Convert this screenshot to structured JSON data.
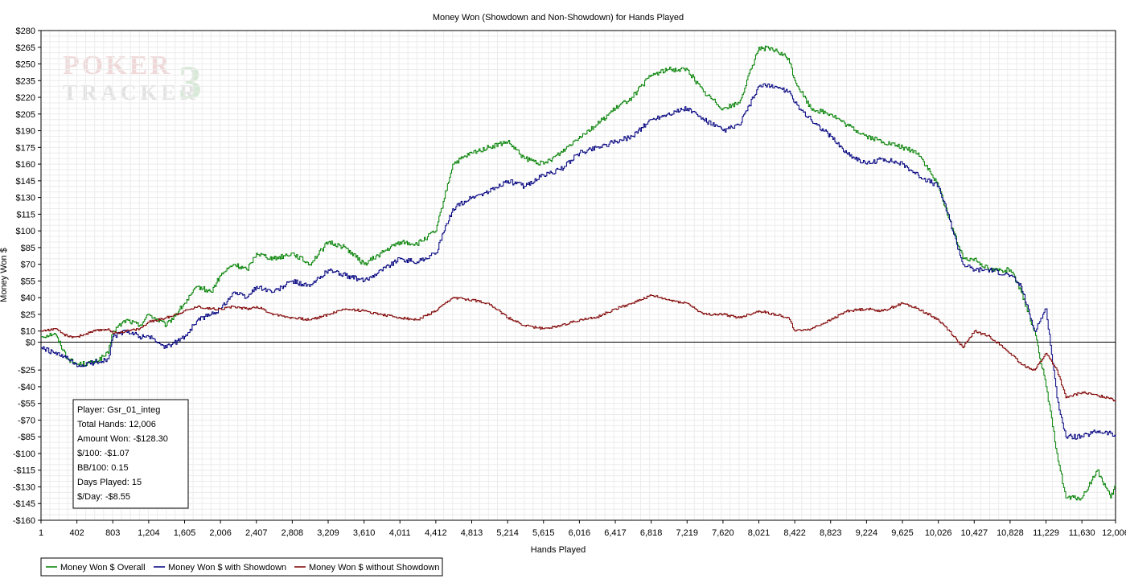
{
  "chart_data": {
    "type": "line",
    "title": "Money Won (Showdown and Non-Showdown) for Hands Played",
    "xlabel": "Hands Played",
    "ylabel": "Money Won $",
    "xlim": [
      1,
      12006
    ],
    "ylim": [
      -160,
      280
    ],
    "x_ticks": [
      1,
      402,
      803,
      1204,
      1605,
      2006,
      2407,
      2808,
      3209,
      3610,
      4011,
      4412,
      4813,
      5214,
      5615,
      6016,
      6417,
      6818,
      7219,
      7620,
      8021,
      8422,
      8823,
      9224,
      9625,
      10026,
      10427,
      10828,
      11229,
      11630,
      12006
    ],
    "x_tick_labels": [
      "1",
      "402",
      "803",
      "1,204",
      "1,605",
      "2,006",
      "2,407",
      "2,808",
      "3,209",
      "3,610",
      "4,011",
      "4,412",
      "4,813",
      "5,214",
      "5,615",
      "6,016",
      "6,417",
      "6,818",
      "7,219",
      "7,620",
      "8,021",
      "8,422",
      "8,823",
      "9,224",
      "9,625",
      "10,026",
      "10,427",
      "10,828",
      "11,229",
      "11,630",
      "12,006"
    ],
    "y_ticks": [
      280,
      265,
      250,
      235,
      220,
      205,
      190,
      175,
      160,
      145,
      130,
      115,
      100,
      85,
      70,
      55,
      40,
      25,
      10,
      0,
      -25,
      -40,
      -55,
      -70,
      -85,
      -100,
      -115,
      -130,
      -145,
      -160
    ],
    "y_tick_labels": [
      "$280",
      "$265",
      "$250",
      "$235",
      "$220",
      "$205",
      "$190",
      "$175",
      "$160",
      "$145",
      "$130",
      "$115",
      "$100",
      "$85",
      "$70",
      "$55",
      "$40",
      "$25",
      "$10",
      "$0",
      "-$25",
      "-$40",
      "-$55",
      "-$70",
      "-$85",
      "-$100",
      "-$115",
      "-$130",
      "-$145",
      "-$160"
    ],
    "grid": true,
    "legend_position": "bottom-left",
    "series": [
      {
        "name": "Money Won $ Overall",
        "color": "#008000",
        "x": [
          1,
          150,
          300,
          402,
          600,
          750,
          803,
          950,
          1100,
          1204,
          1400,
          1605,
          1750,
          1900,
          2006,
          2150,
          2300,
          2407,
          2600,
          2808,
          3000,
          3209,
          3400,
          3610,
          3800,
          4011,
          4200,
          4412,
          4600,
          4813,
          5000,
          5214,
          5400,
          5615,
          5800,
          6016,
          6200,
          6417,
          6600,
          6818,
          7000,
          7219,
          7400,
          7620,
          7800,
          8021,
          8200,
          8350,
          8422,
          8600,
          8823,
          9000,
          9224,
          9400,
          9625,
          9800,
          10026,
          10150,
          10300,
          10427,
          10600,
          10828,
          10950,
          11100,
          11229,
          11350,
          11450,
          11630,
          11800,
          11950,
          12006
        ],
        "y": [
          5,
          8,
          -15,
          -20,
          -18,
          -10,
          10,
          20,
          15,
          25,
          15,
          35,
          50,
          45,
          60,
          70,
          65,
          80,
          75,
          80,
          70,
          90,
          85,
          70,
          80,
          90,
          88,
          100,
          160,
          170,
          175,
          180,
          165,
          160,
          170,
          185,
          195,
          210,
          220,
          240,
          245,
          245,
          225,
          210,
          215,
          265,
          262,
          255,
          235,
          210,
          205,
          195,
          185,
          180,
          175,
          170,
          140,
          110,
          75,
          75,
          65,
          65,
          45,
          10,
          -40,
          -100,
          -140,
          -140,
          -115,
          -140,
          -128.3
        ]
      },
      {
        "name": "Money Won $ with Showdown",
        "color": "#00007f",
        "x": [
          1,
          150,
          300,
          402,
          600,
          750,
          803,
          950,
          1100,
          1204,
          1400,
          1605,
          1750,
          1900,
          2006,
          2150,
          2300,
          2407,
          2600,
          2808,
          3000,
          3209,
          3400,
          3610,
          3800,
          4011,
          4200,
          4412,
          4600,
          4813,
          5000,
          5214,
          5400,
          5615,
          5800,
          6016,
          6200,
          6417,
          6600,
          6818,
          7000,
          7219,
          7400,
          7620,
          7800,
          8021,
          8200,
          8350,
          8422,
          8600,
          8823,
          9000,
          9224,
          9400,
          9625,
          9800,
          10026,
          10150,
          10300,
          10427,
          10600,
          10828,
          10950,
          11100,
          11229,
          11350,
          11450,
          11630,
          11800,
          11950,
          12006
        ],
        "y": [
          -5,
          -10,
          -15,
          -22,
          -18,
          -15,
          5,
          10,
          5,
          5,
          -5,
          5,
          20,
          25,
          30,
          45,
          40,
          50,
          45,
          55,
          50,
          65,
          60,
          55,
          65,
          75,
          72,
          80,
          120,
          130,
          135,
          145,
          140,
          150,
          155,
          170,
          175,
          180,
          185,
          200,
          205,
          210,
          200,
          190,
          195,
          230,
          230,
          225,
          215,
          200,
          185,
          170,
          160,
          165,
          160,
          150,
          140,
          110,
          70,
          65,
          65,
          60,
          50,
          10,
          30,
          -50,
          -85,
          -85,
          -80,
          -82,
          -85
        ]
      },
      {
        "name": "Money Won $ without Showdown",
        "color": "#7f0000",
        "x": [
          1,
          150,
          300,
          402,
          600,
          750,
          803,
          950,
          1100,
          1204,
          1400,
          1605,
          1750,
          1900,
          2006,
          2150,
          2300,
          2407,
          2600,
          2808,
          3000,
          3209,
          3400,
          3610,
          3800,
          4011,
          4200,
          4412,
          4600,
          4813,
          5000,
          5214,
          5400,
          5615,
          5800,
          6016,
          6200,
          6417,
          6600,
          6818,
          7000,
          7219,
          7400,
          7620,
          7800,
          8021,
          8200,
          8350,
          8422,
          8600,
          8823,
          9000,
          9224,
          9400,
          9625,
          9800,
          10026,
          10150,
          10300,
          10427,
          10600,
          10828,
          10950,
          11100,
          11229,
          11350,
          11450,
          11630,
          11800,
          11950,
          12006
        ],
        "y": [
          10,
          12,
          5,
          5,
          10,
          12,
          8,
          10,
          12,
          18,
          22,
          28,
          32,
          30,
          30,
          32,
          30,
          32,
          25,
          22,
          20,
          25,
          30,
          28,
          25,
          22,
          20,
          28,
          40,
          38,
          35,
          22,
          15,
          12,
          15,
          20,
          22,
          30,
          35,
          42,
          38,
          35,
          25,
          25,
          22,
          28,
          25,
          22,
          10,
          12,
          20,
          28,
          30,
          28,
          35,
          30,
          20,
          10,
          -5,
          10,
          5,
          -10,
          -20,
          -25,
          -10,
          -25,
          -50,
          -45,
          -48,
          -50,
          -53
        ]
      }
    ]
  },
  "stats": {
    "player": "Player: Gsr_01_integ",
    "total_hands": "Total Hands: 12,006",
    "amount_won": "Amount Won: -$128.30",
    "per_100": "$/100: -$1.07",
    "bb_per_100": "BB/100: 0.15",
    "days_played": "Days Played: 15",
    "per_day": "$/Day: -$8.55"
  },
  "watermark": {
    "line1": "POKER",
    "line2": "TRACKER",
    "mark": "3"
  }
}
